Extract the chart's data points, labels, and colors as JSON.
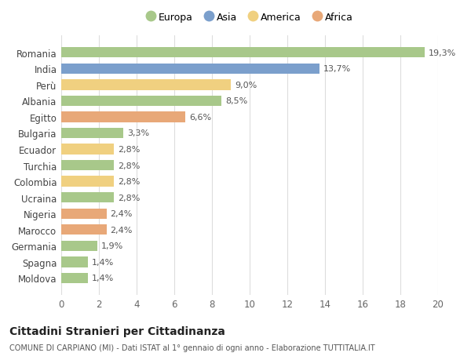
{
  "countries": [
    "Romania",
    "India",
    "Perù",
    "Albania",
    "Egitto",
    "Bulgaria",
    "Ecuador",
    "Turchia",
    "Colombia",
    "Ucraina",
    "Nigeria",
    "Marocco",
    "Germania",
    "Spagna",
    "Moldova"
  ],
  "values": [
    19.3,
    13.7,
    9.0,
    8.5,
    6.6,
    3.3,
    2.8,
    2.8,
    2.8,
    2.8,
    2.4,
    2.4,
    1.9,
    1.4,
    1.4
  ],
  "labels": [
    "19,3%",
    "13,7%",
    "9,0%",
    "8,5%",
    "6,6%",
    "3,3%",
    "2,8%",
    "2,8%",
    "2,8%",
    "2,8%",
    "2,4%",
    "2,4%",
    "1,9%",
    "1,4%",
    "1,4%"
  ],
  "continents": [
    "Europa",
    "Asia",
    "America",
    "Europa",
    "Africa",
    "Europa",
    "America",
    "Europa",
    "America",
    "Europa",
    "Africa",
    "Africa",
    "Europa",
    "Europa",
    "Europa"
  ],
  "colors": {
    "Europa": "#a8c88a",
    "Asia": "#7b9fcc",
    "America": "#f0d080",
    "Africa": "#e8a878"
  },
  "legend_order": [
    "Europa",
    "Asia",
    "America",
    "Africa"
  ],
  "title": "Cittadini Stranieri per Cittadinanza",
  "subtitle": "COMUNE DI CARPIANO (MI) - Dati ISTAT al 1° gennaio di ogni anno - Elaborazione TUTTITALIA.IT",
  "xlim": [
    0,
    20
  ],
  "xticks": [
    0,
    2,
    4,
    6,
    8,
    10,
    12,
    14,
    16,
    18,
    20
  ],
  "bg_color": "#ffffff",
  "grid_color": "#dddddd"
}
